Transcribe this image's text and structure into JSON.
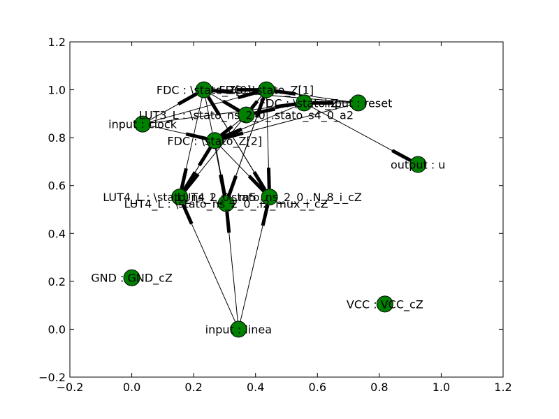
{
  "chart_data": {
    "type": "network-graph",
    "title": "",
    "xlabel": "",
    "ylabel": "",
    "xlim": [
      -0.2,
      1.2
    ],
    "ylim": [
      -0.2,
      1.2
    ],
    "x_ticks": [
      "−0.2",
      "0.0",
      "0.2",
      "0.4",
      "0.6",
      "0.8",
      "1.0",
      "1.2"
    ],
    "y_ticks": [
      "−0.2",
      "0.0",
      "0.2",
      "0.4",
      "0.6",
      "0.8",
      "1.0",
      "1.2"
    ],
    "grid": false,
    "node_color": "#008000",
    "edge_color": "#000000",
    "nodes": [
      {
        "id": "fdc_z0",
        "label": "FDC : \\stato_Z[0]",
        "x": 0.233,
        "y": 1.0
      },
      {
        "id": "fdc_z1",
        "label": "FDC : \\stato_Z[1]",
        "x": 0.435,
        "y": 1.0
      },
      {
        "id": "fdc_z3",
        "label": "FDC : \\stato_Z...",
        "x": 0.557,
        "y": 0.945
      },
      {
        "id": "reset",
        "label": "input : reset",
        "x": 0.732,
        "y": 0.945
      },
      {
        "id": "lut3",
        "label": "LUT3_L : \\stato_ns_2_0_.stato_s4_0_a2",
        "x": 0.37,
        "y": 0.895
      },
      {
        "id": "clock",
        "label": "input : clock",
        "x": 0.035,
        "y": 0.857
      },
      {
        "id": "fdc_z2",
        "label": "FDC : \\stato_Z[2]",
        "x": 0.268,
        "y": 0.788
      },
      {
        "id": "output_u",
        "label": "output : u",
        "x": 0.925,
        "y": 0.688
      },
      {
        "id": "lut4_a",
        "label": "LUT4_L : \\stato_ns_2_0_.m5",
        "x": 0.155,
        "y": 0.552
      },
      {
        "id": "lut4_b",
        "label": "LUT4_L : \\stato_ns_2_0_.N_8_i_cZ",
        "x": 0.445,
        "y": 0.552
      },
      {
        "id": "lut4_c",
        "label": "LUT4_L : \\stato_ns_2_0_.i2_mux_i_cZ",
        "x": 0.305,
        "y": 0.525
      },
      {
        "id": "gnd",
        "label": "GND : GND_cZ",
        "x": 0.0,
        "y": 0.215
      },
      {
        "id": "vcc",
        "label": "VCC : VCC_cZ",
        "x": 0.818,
        "y": 0.105
      },
      {
        "id": "linea",
        "label": "input : linea",
        "x": 0.345,
        "y": 0.0
      }
    ],
    "edges": [
      [
        "clock",
        "fdc_z0"
      ],
      [
        "clock",
        "fdc_z1"
      ],
      [
        "clock",
        "fdc_z2"
      ],
      [
        "clock",
        "fdc_z3"
      ],
      [
        "reset",
        "fdc_z0"
      ],
      [
        "reset",
        "fdc_z1"
      ],
      [
        "reset",
        "fdc_z2"
      ],
      [
        "reset",
        "fdc_z3"
      ],
      [
        "fdc_z0",
        "lut3"
      ],
      [
        "fdc_z1",
        "lut3"
      ],
      [
        "fdc_z3",
        "lut3"
      ],
      [
        "fdc_z0",
        "fdc_z1"
      ],
      [
        "fdc_z3",
        "output_u"
      ],
      [
        "lut3",
        "fdc_z2"
      ],
      [
        "fdc_z3",
        "fdc_z2"
      ],
      [
        "fdc_z0",
        "lut4_a"
      ],
      [
        "fdc_z0",
        "lut4_b"
      ],
      [
        "fdc_z0",
        "lut4_c"
      ],
      [
        "fdc_z1",
        "lut4_a"
      ],
      [
        "fdc_z1",
        "lut4_b"
      ],
      [
        "fdc_z1",
        "lut4_c"
      ],
      [
        "fdc_z2",
        "lut4_a"
      ],
      [
        "fdc_z2",
        "lut4_b"
      ],
      [
        "fdc_z2",
        "lut4_c"
      ],
      [
        "lut4_a",
        "fdc_z2"
      ],
      [
        "lut4_b",
        "fdc_z0"
      ],
      [
        "lut4_c",
        "fdc_z1"
      ],
      [
        "linea",
        "lut4_a"
      ],
      [
        "linea",
        "lut4_b"
      ],
      [
        "linea",
        "lut4_c"
      ]
    ]
  }
}
